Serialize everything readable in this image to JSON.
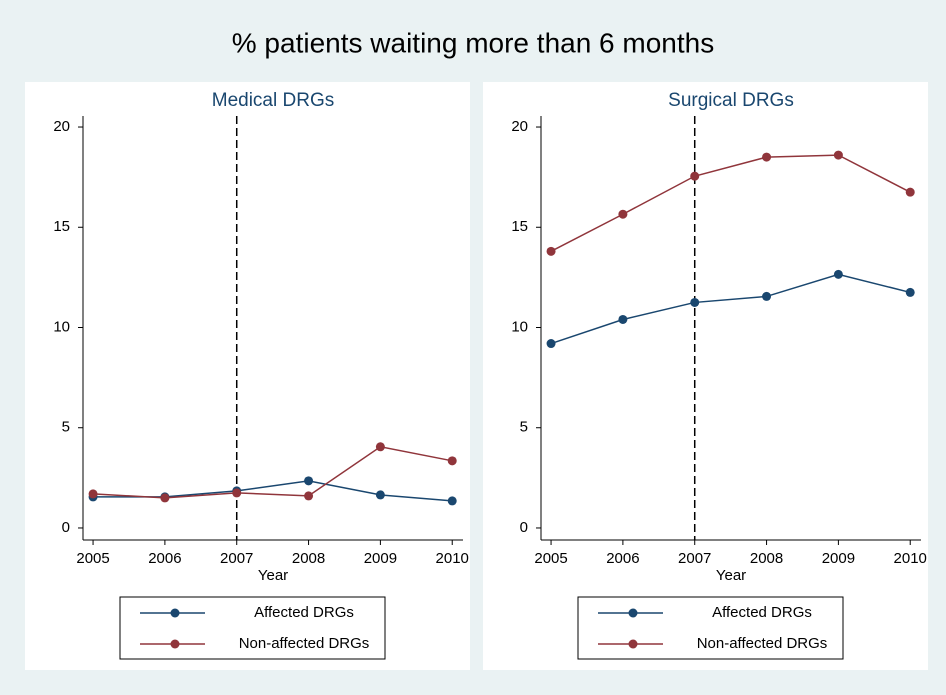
{
  "title": "% patients waiting more than 6 months",
  "chart_data": [
    {
      "type": "line",
      "title": "Medical DRGs",
      "x_label": "Year",
      "x": [
        2005,
        2006,
        2007,
        2008,
        2009,
        2010
      ],
      "series": [
        {
          "name": "Affected DRGs",
          "color": "#1a476f",
          "values": [
            1.55,
            1.55,
            1.85,
            2.35,
            1.65,
            1.35
          ]
        },
        {
          "name": "Non-affected DRGs",
          "color": "#90353b",
          "values": [
            1.7,
            1.5,
            1.75,
            1.6,
            4.05,
            3.35
          ]
        }
      ],
      "xlim": [
        2004.86,
        2010.15
      ],
      "xticks": [
        2005,
        2006,
        2007,
        2008,
        2009,
        2010
      ],
      "ylim": [
        -0.6,
        20.55
      ],
      "yticks": [
        0,
        5,
        10,
        15,
        20
      ],
      "vline": 2007,
      "grid": false
    },
    {
      "type": "line",
      "title": "Surgical DRGs",
      "x_label": "Year",
      "x": [
        2005,
        2006,
        2007,
        2008,
        2009,
        2010
      ],
      "series": [
        {
          "name": "Affected DRGs",
          "color": "#1a476f",
          "values": [
            9.2,
            10.4,
            11.25,
            11.55,
            12.65,
            11.75
          ]
        },
        {
          "name": "Non-affected DRGs",
          "color": "#90353b",
          "values": [
            13.8,
            15.65,
            17.55,
            18.5,
            18.6,
            16.75
          ]
        }
      ],
      "xlim": [
        2004.86,
        2010.15
      ],
      "xticks": [
        2005,
        2006,
        2007,
        2008,
        2009,
        2010
      ],
      "ylim": [
        -0.6,
        20.55
      ],
      "yticks": [
        0,
        5,
        10,
        15,
        20
      ],
      "vline": 2007,
      "grid": false
    }
  ]
}
